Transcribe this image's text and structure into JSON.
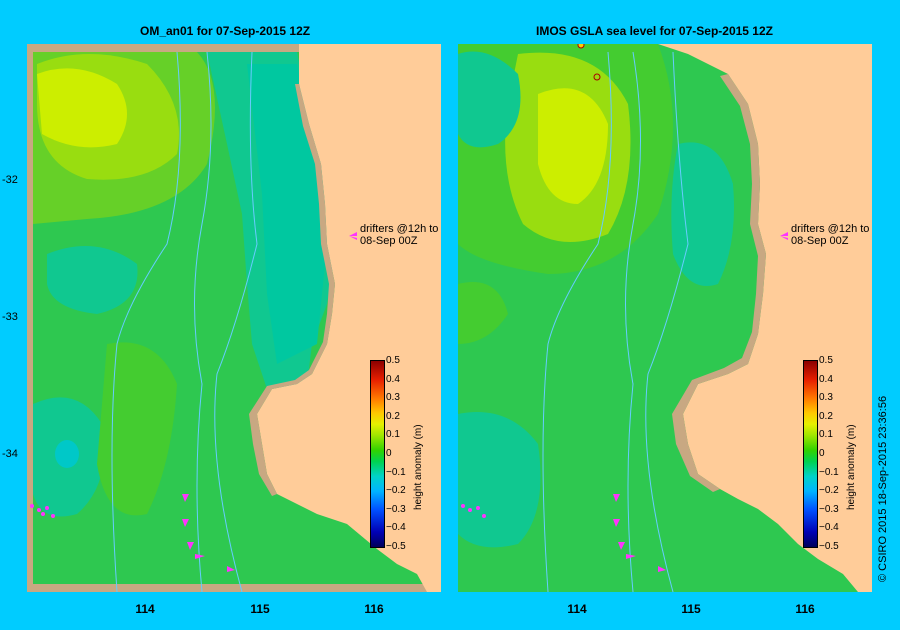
{
  "panels": [
    {
      "title": "OM_an01  for 07-Sep-2015 12Z"
    },
    {
      "title": "IMOS GSLA sea level  for 07-Sep-2015 12Z"
    }
  ],
  "drifters_label_line1": "drifters @12h to",
  "drifters_label_line2": "08-Sep 00Z",
  "lat_labels": [
    "-32",
    "-33",
    "-34"
  ],
  "lon_labels": [
    "114",
    "115",
    "116"
  ],
  "colorbar": {
    "title": "height anomaly (m)",
    "ticks": [
      "0.5",
      "0.4",
      "0.3",
      "0.2",
      "0.1",
      "0",
      "−0.1",
      "−0.2",
      "−0.3",
      "−0.4",
      "−0.5"
    ],
    "range": [
      -0.5,
      0.5
    ]
  },
  "credit": "© CSIRO 2015   18-Sep-2015 23:36:56",
  "colors": {
    "background": "#00ccff",
    "land": "#ffcc99",
    "shelf": "#c8a882",
    "drifter": "#ff33ff",
    "bathymetry": "#66ccff"
  }
}
